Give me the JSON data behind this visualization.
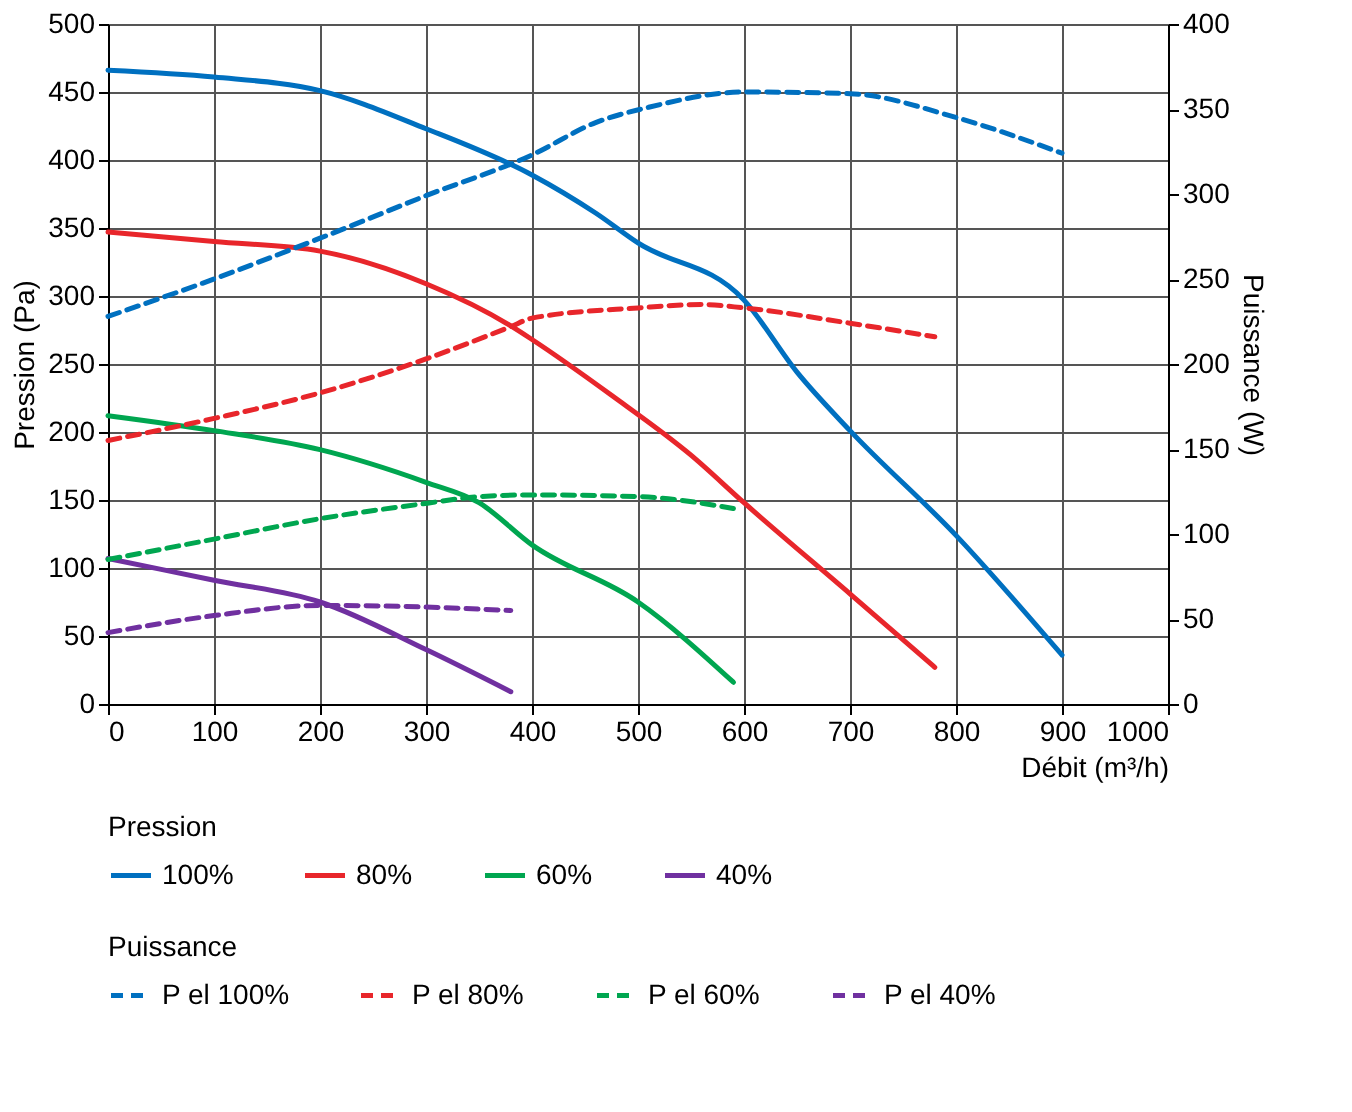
{
  "chart_data": {
    "type": "line",
    "xlabel": "Débit (m³/h)",
    "ylabel": "Pression (Pa)",
    "y2label": "Puissance (W)",
    "legend_title": [
      "Pression",
      "Puissance"
    ],
    "xlim": [
      0,
      1000
    ],
    "xticks": [
      0,
      100,
      200,
      300,
      400,
      500,
      600,
      700,
      800,
      900,
      1000
    ],
    "ylim": [
      0,
      500
    ],
    "yticks": [
      0,
      50,
      100,
      150,
      200,
      250,
      300,
      350,
      400,
      450,
      500
    ],
    "y2lim": [
      0,
      400
    ],
    "y2ticks": [
      0,
      50,
      100,
      150,
      200,
      250,
      300,
      350,
      400
    ],
    "grid": true,
    "legend": "bottom",
    "marker": "none",
    "series": [
      {
        "name": "100%",
        "color": "#0070c0",
        "line_style": "solid",
        "x": [
          0,
          100,
          200,
          300,
          400,
          460,
          500,
          600,
          650,
          700,
          800,
          900
        ],
        "values": [
          466,
          461,
          451,
          423,
          389,
          361,
          339,
          297,
          244,
          201,
          124,
          36
        ]
      },
      {
        "name": "80%",
        "color": "#e8262b",
        "line_style": "solid",
        "x": [
          0,
          100,
          200,
          300,
          380,
          400,
          475,
          550,
          600,
          700,
          780
        ],
        "values": [
          347,
          340,
          333,
          309,
          278,
          268,
          227,
          183,
          148,
          81,
          27
        ]
      },
      {
        "name": "60%",
        "color": "#00a650",
        "line_style": "solid",
        "x": [
          0,
          100,
          200,
          300,
          350,
          400,
          500,
          590
        ],
        "values": [
          212,
          201,
          187,
          163,
          148,
          117,
          75,
          16
        ]
      },
      {
        "name": "40%",
        "color": "#7030a0",
        "line_style": "solid",
        "x": [
          0,
          100,
          200,
          300,
          380
        ],
        "values": [
          107,
          91,
          75,
          40,
          9
        ]
      },
      {
        "name": "P el 100%",
        "color": "#0070c0",
        "line_style": "dashed",
        "axis": "y2",
        "x": [
          0,
          100,
          200,
          300,
          400,
          460,
          510,
          600,
          700,
          800,
          900
        ],
        "values": [
          228,
          250,
          274,
          299,
          323,
          342,
          351,
          360,
          359,
          345,
          324
        ]
      },
      {
        "name": "P el 80%",
        "color": "#e8262b",
        "line_style": "dashed",
        "axis": "y2",
        "x": [
          0,
          100,
          200,
          300,
          380,
          400,
          500,
          560,
          600,
          700,
          780
        ],
        "values": [
          155,
          168,
          183,
          203,
          222,
          227,
          233,
          235,
          233,
          224,
          216
        ]
      },
      {
        "name": "P el 60%",
        "color": "#00a650",
        "line_style": "dashed",
        "axis": "y2",
        "x": [
          0,
          100,
          200,
          300,
          350,
          400,
          500,
          590
        ],
        "values": [
          85,
          97,
          109,
          118,
          122,
          123,
          122,
          115
        ]
      },
      {
        "name": "P el 40%",
        "color": "#7030a0",
        "line_style": "dashed",
        "axis": "y2",
        "x": [
          0,
          100,
          200,
          300,
          380
        ],
        "values": [
          42,
          52,
          58,
          57,
          55
        ]
      }
    ]
  }
}
